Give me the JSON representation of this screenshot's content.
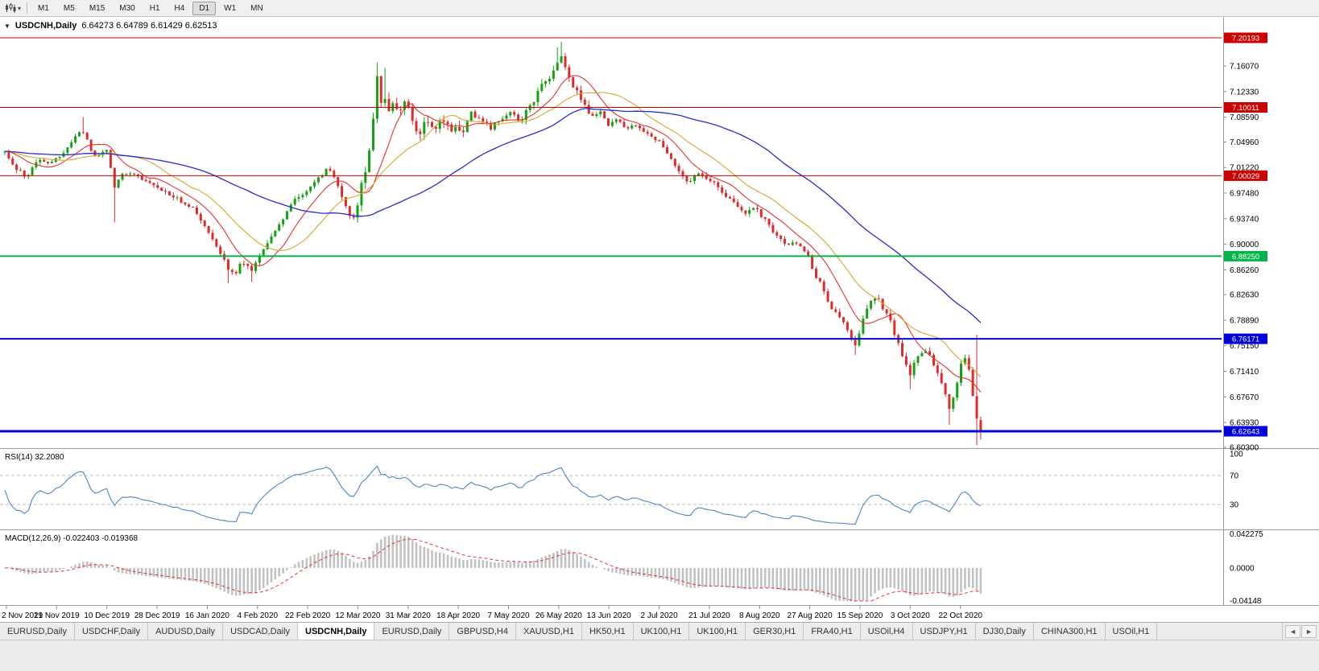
{
  "toolbar": {
    "timeframes": [
      "M1",
      "M5",
      "M15",
      "M30",
      "H1",
      "H4",
      "D1",
      "W1",
      "MN"
    ],
    "active_timeframe": "D1"
  },
  "chart_header": {
    "collapse_arrow": "▼",
    "symbol": "USDCNH,Daily",
    "ohlc": "6.64273 6.64789 6.61429 6.62513"
  },
  "colors": {
    "up_candle": "#16a016",
    "down_candle": "#dd2c2c",
    "ma_fast": "#e43232",
    "ma_mid": "#d9a62e",
    "ma_slow": "#2b2bd0",
    "rsi_line": "#4a86c8",
    "rsi_levels": "#bbbbbb",
    "macd_histogram": "#c2c2c2",
    "macd_signal": "#e43232",
    "panel_border": "#9a9a9a",
    "axis_text": "#000000"
  },
  "chart_data": [
    {
      "type": "candlestick",
      "title": "USDCNH,Daily",
      "ylim": [
        6.6029,
        7.2314
      ],
      "price_ticks": [
        "7.16070",
        "7.12330",
        "7.08590",
        "7.04960",
        "7.01220",
        "6.97480",
        "6.93740",
        "6.90000",
        "6.86260",
        "6.82630",
        "6.78890",
        "6.75150",
        "6.71410",
        "6.67670",
        "6.63930",
        "6.60300"
      ],
      "levels": [
        {
          "price": 7.20193,
          "label": "7.20193",
          "color": "#cc0000",
          "width": 1
        },
        {
          "price": 7.10011,
          "label": "7.10011",
          "color": "#cc0000",
          "width": 1
        },
        {
          "price": 7.00029,
          "label": "7.00029",
          "color": "#cc0000",
          "width": 1
        },
        {
          "price": 6.8825,
          "label": "6.88250",
          "color": "#00b44b",
          "width": 2
        },
        {
          "price": 6.76171,
          "label": "6.76171",
          "color": "#0000dd",
          "width": 2
        },
        {
          "price": 6.62643,
          "label": "6.62643",
          "color": "#0000dd",
          "width": 3
        }
      ],
      "moving_averages": [
        {
          "period": 10,
          "color": "#e43232"
        },
        {
          "period": 21,
          "color": "#d9a62e"
        },
        {
          "period": 55,
          "color": "#2b2bd0"
        }
      ],
      "close_waypoints": [
        [
          0.0,
          7.036
        ],
        [
          0.012,
          7.01
        ],
        [
          0.022,
          6.998
        ],
        [
          0.034,
          7.026
        ],
        [
          0.048,
          7.018
        ],
        [
          0.06,
          7.034
        ],
        [
          0.072,
          7.056
        ],
        [
          0.079,
          7.07
        ],
        [
          0.087,
          7.042
        ],
        [
          0.095,
          7.026
        ],
        [
          0.104,
          7.042
        ],
        [
          0.112,
          6.982
        ],
        [
          0.122,
          7.006
        ],
        [
          0.135,
          6.998
        ],
        [
          0.15,
          6.99
        ],
        [
          0.165,
          6.976
        ],
        [
          0.18,
          6.964
        ],
        [
          0.195,
          6.95
        ],
        [
          0.207,
          6.924
        ],
        [
          0.218,
          6.896
        ],
        [
          0.228,
          6.866
        ],
        [
          0.236,
          6.856
        ],
        [
          0.244,
          6.876
        ],
        [
          0.252,
          6.86
        ],
        [
          0.261,
          6.882
        ],
        [
          0.272,
          6.908
        ],
        [
          0.284,
          6.936
        ],
        [
          0.296,
          6.962
        ],
        [
          0.308,
          6.978
        ],
        [
          0.32,
          6.996
        ],
        [
          0.331,
          7.01
        ],
        [
          0.341,
          6.988
        ],
        [
          0.349,
          6.958
        ],
        [
          0.356,
          6.934
        ],
        [
          0.363,
          6.97
        ],
        [
          0.369,
          7.008
        ],
        [
          0.374,
          7.042
        ],
        [
          0.378,
          7.09
        ],
        [
          0.382,
          7.148
        ],
        [
          0.386,
          7.105
        ],
        [
          0.39,
          7.12
        ],
        [
          0.394,
          7.086
        ],
        [
          0.399,
          7.112
        ],
        [
          0.404,
          7.088
        ],
        [
          0.41,
          7.114
        ],
        [
          0.417,
          7.082
        ],
        [
          0.424,
          7.058
        ],
        [
          0.431,
          7.09
        ],
        [
          0.439,
          7.064
        ],
        [
          0.448,
          7.082
        ],
        [
          0.458,
          7.07
        ],
        [
          0.468,
          7.062
        ],
        [
          0.478,
          7.092
        ],
        [
          0.488,
          7.08
        ],
        [
          0.498,
          7.07
        ],
        [
          0.508,
          7.084
        ],
        [
          0.518,
          7.094
        ],
        [
          0.528,
          7.078
        ],
        [
          0.538,
          7.102
        ],
        [
          0.548,
          7.126
        ],
        [
          0.558,
          7.146
        ],
        [
          0.565,
          7.16
        ],
        [
          0.57,
          7.172
        ],
        [
          0.576,
          7.15
        ],
        [
          0.584,
          7.128
        ],
        [
          0.592,
          7.108
        ],
        [
          0.601,
          7.084
        ],
        [
          0.61,
          7.094
        ],
        [
          0.619,
          7.074
        ],
        [
          0.628,
          7.084
        ],
        [
          0.637,
          7.068
        ],
        [
          0.646,
          7.076
        ],
        [
          0.656,
          7.062
        ],
        [
          0.666,
          7.054
        ],
        [
          0.676,
          7.042
        ],
        [
          0.685,
          7.02
        ],
        [
          0.693,
          7.002
        ],
        [
          0.701,
          6.992
        ],
        [
          0.71,
          7.006
        ],
        [
          0.719,
          6.996
        ],
        [
          0.729,
          6.986
        ],
        [
          0.739,
          6.972
        ],
        [
          0.749,
          6.958
        ],
        [
          0.759,
          6.946
        ],
        [
          0.768,
          6.954
        ],
        [
          0.777,
          6.938
        ],
        [
          0.786,
          6.922
        ],
        [
          0.794,
          6.908
        ],
        [
          0.802,
          6.896
        ],
        [
          0.809,
          6.906
        ],
        [
          0.817,
          6.892
        ],
        [
          0.824,
          6.878
        ],
        [
          0.832,
          6.852
        ],
        [
          0.84,
          6.828
        ],
        [
          0.848,
          6.806
        ],
        [
          0.856,
          6.792
        ],
        [
          0.864,
          6.772
        ],
        [
          0.872,
          6.752
        ],
        [
          0.879,
          6.786
        ],
        [
          0.886,
          6.812
        ],
        [
          0.893,
          6.825
        ],
        [
          0.9,
          6.806
        ],
        [
          0.907,
          6.788
        ],
        [
          0.914,
          6.762
        ],
        [
          0.921,
          6.732
        ],
        [
          0.928,
          6.708
        ],
        [
          0.935,
          6.736
        ],
        [
          0.943,
          6.748
        ],
        [
          0.95,
          6.73
        ],
        [
          0.957,
          6.708
        ],
        [
          0.964,
          6.678
        ],
        [
          0.969,
          6.652
        ],
        [
          0.974,
          6.69
        ],
        [
          0.98,
          6.722
        ],
        [
          0.985,
          6.735
        ],
        [
          0.99,
          6.7
        ],
        [
          0.994,
          6.66
        ],
        [
          1.0,
          6.62513
        ]
      ],
      "wick_events": [
        {
          "frac": 0.079,
          "high": 7.086
        },
        {
          "frac": 0.112,
          "low": 6.932
        },
        {
          "frac": 0.23,
          "low": 6.843
        },
        {
          "frac": 0.252,
          "low": 6.845
        },
        {
          "frac": 0.382,
          "high": 7.166
        },
        {
          "frac": 0.39,
          "high": 7.158
        },
        {
          "frac": 0.565,
          "high": 7.188
        },
        {
          "frac": 0.57,
          "high": 7.196
        },
        {
          "frac": 0.872,
          "low": 6.738
        },
        {
          "frac": 0.928,
          "low": 6.688
        },
        {
          "frac": 0.969,
          "low": 6.636
        },
        {
          "frac": 0.996,
          "high": 6.768,
          "low": 6.606
        }
      ],
      "last_candle": [
        6.64273,
        6.64789,
        6.61429,
        6.62513
      ],
      "x_dates": [
        "2 Nov 2019",
        "21 Nov 2019",
        "10 Dec 2019",
        "28 Dec 2019",
        "16 Jan 2020",
        "4 Feb 2020",
        "22 Feb 2020",
        "12 Mar 2020",
        "31 Mar 2020",
        "18 Apr 2020",
        "7 May 2020",
        "26 May 2020",
        "13 Jun 2020",
        "2 Jul 2020",
        "21 Jul 2020",
        "8 Aug 2020",
        "27 Aug 2020",
        "15 Sep 2020",
        "3 Oct 2020",
        "22 Oct 2020"
      ],
      "grid": false,
      "legend": false
    },
    {
      "type": "line",
      "name": "RSI",
      "label": "RSI(14)",
      "period": 14,
      "value": "32.2080",
      "levels": [
        70,
        30
      ],
      "axis_labels": [
        "100",
        "70",
        "30"
      ],
      "ylim": [
        0,
        100
      ]
    },
    {
      "type": "bar",
      "name": "MACD",
      "label": "MACD(12,26,9)",
      "fast": 12,
      "slow": 26,
      "signal": 9,
      "values": "-0.022403 -0.019368",
      "axis_labels": [
        "0.042275",
        "0.0000",
        "-0.04148"
      ],
      "ylim": [
        -0.04148,
        0.042275
      ]
    }
  ],
  "tabs": {
    "scroll_left": "◄",
    "scroll_right": "►",
    "items": [
      {
        "label": "EURUSD,Daily",
        "active": false
      },
      {
        "label": "USDCHF,Daily",
        "active": false
      },
      {
        "label": "AUDUSD,Daily",
        "active": false
      },
      {
        "label": "USDCAD,Daily",
        "active": false
      },
      {
        "label": "USDCNH,Daily",
        "active": true
      },
      {
        "label": "EURUSD,Daily",
        "active": false
      },
      {
        "label": "GBPUSD,H4",
        "active": false
      },
      {
        "label": "XAUUSD,H1",
        "active": false
      },
      {
        "label": "HK50,H1",
        "active": false
      },
      {
        "label": "UK100,H1",
        "active": false
      },
      {
        "label": "UK100,H1",
        "active": false
      },
      {
        "label": "GER30,H1",
        "active": false
      },
      {
        "label": "FRA40,H1",
        "active": false
      },
      {
        "label": "USOil,H4",
        "active": false
      },
      {
        "label": "USDJPY,H1",
        "active": false
      },
      {
        "label": "DJ30,Daily",
        "active": false
      },
      {
        "label": "CHINA300,H1",
        "active": false
      },
      {
        "label": "USOil,H1",
        "active": false
      }
    ]
  }
}
